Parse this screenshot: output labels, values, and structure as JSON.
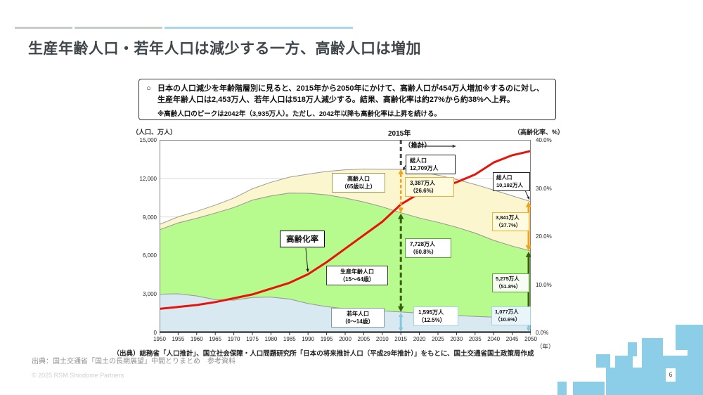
{
  "slide": {
    "title": "生産年齢人口・若年人口は減少する一方、高齢人口は増加",
    "lead_box": {
      "bullet": "○",
      "line1": "日本の人口減少を年齢階層別に見ると、2015年から2050年にかけて、高齢人口が454万人増加※するのに対し、",
      "line2": "生産年齢人口は2,453万人、若年人口は518万人減少する。結果、高齢化率は約27%から約38%へ上昇。",
      "note": "※高齢人口のピークは2042年（3,935万人）。ただし、2042年以降も高齢化率は上昇を続ける。"
    },
    "chart_source": "（出典）総務省「人口推計」、国立社会保障・人口問題研究所「日本の将来推計人口（平成29年推計）」をもとに、国土交通省国土政策局作成",
    "footer_source": "出典：国土交通省「国土の長期展望」中間とりまとめ　参考資料",
    "copyright": "© 2025 RSM Shiodome Partners",
    "page_number": "6"
  },
  "chart_data": {
    "type": "area",
    "stacked": true,
    "x": [
      1950,
      1955,
      1960,
      1965,
      1970,
      1975,
      1980,
      1985,
      1990,
      1995,
      2000,
      2005,
      2010,
      2015,
      2020,
      2025,
      2030,
      2035,
      2040,
      2045,
      2050
    ],
    "x_axis": {
      "unit_label": "（年）",
      "ticks": [
        1950,
        1955,
        1960,
        1965,
        1970,
        1975,
        1980,
        1985,
        1990,
        1995,
        2000,
        2005,
        2010,
        2015,
        2020,
        2025,
        2030,
        2035,
        2040,
        2045,
        2050
      ]
    },
    "left_axis": {
      "title": "（人口、万人）",
      "range": [
        0,
        15000
      ],
      "ticks": [
        "15,000",
        "12,000",
        "9,000",
        "6,000",
        "3,000",
        "0"
      ]
    },
    "right_axis": {
      "title": "（高齢化率、%）",
      "range": [
        0,
        40
      ],
      "ticks": [
        "40.0%",
        "30.0%",
        "20.0%",
        "10.0%",
        "0.0%"
      ]
    },
    "projection_start": 2015,
    "series": [
      {
        "name": "若年人口（0～14歳）",
        "type": "area",
        "axis": "left",
        "color": "#D9E9F1",
        "values": [
          2979,
          3012,
          2843,
          2553,
          2515,
          2722,
          2751,
          2603,
          2249,
          2001,
          1847,
          1752,
          1680,
          1595,
          1507,
          1407,
          1321,
          1246,
          1194,
          1138,
          1077
        ]
      },
      {
        "name": "生産年齢人口（15～64歳）",
        "type": "area",
        "axis": "left",
        "color": "#B7FA8D",
        "values": [
          5017,
          5517,
          6047,
          6744,
          7212,
          7581,
          7883,
          8251,
          8590,
          8716,
          8622,
          8409,
          8103,
          7728,
          7406,
          7170,
          6875,
          6494,
          5978,
          5584,
          5275
        ]
      },
      {
        "name": "高齢人口（65歳以上）",
        "type": "area",
        "axis": "left",
        "color": "#FBF6CD",
        "values": [
          416,
          479,
          540,
          624,
          739,
          887,
          1065,
          1247,
          1489,
          1826,
          2201,
          2567,
          2925,
          3387,
          3619,
          3677,
          3716,
          3782,
          3921,
          3919,
          3841
        ]
      },
      {
        "name": "高齢化率",
        "type": "line",
        "axis": "right",
        "color": "#E8130C",
        "values": [
          4.9,
          5.3,
          5.7,
          6.3,
          7.1,
          7.9,
          9.1,
          10.3,
          12.1,
          14.6,
          17.4,
          20.2,
          23.0,
          26.6,
          28.9,
          30.0,
          31.2,
          32.8,
          35.3,
          36.8,
          37.7
        ]
      }
    ],
    "annotations": {
      "year_2015_label": "2015年",
      "projection_label": "（推計）",
      "rate_label": "高齢化率",
      "series_label_elderly": {
        "l1": "高齢人口",
        "l2": "（65歳以上）"
      },
      "series_label_working": {
        "l1": "生産年齢人口",
        "l2": "（15～64歳）"
      },
      "series_label_young": {
        "l1": "若年人口",
        "l2": "（0～14歳）"
      },
      "total_2015": {
        "l1": "総人口",
        "l2": "12,709万人"
      },
      "total_2050": {
        "l1": "総人口",
        "l2": "10,192万人"
      },
      "elderly_2015": {
        "l1": "3,387万人",
        "l2": "（26.6%）"
      },
      "working_2015": {
        "l1": "7,728万人",
        "l2": "（60.8%）"
      },
      "young_2015": {
        "l1": "1,595万人",
        "l2": "（12.5%）"
      },
      "elderly_2050": {
        "l1": "3,841万人",
        "l2": "（37.7%）"
      },
      "working_2050": {
        "l1": "5,275万人",
        "l2": "（51.8%）"
      },
      "young_2050": {
        "l1": "1,077万人",
        "l2": "（10.6%）"
      }
    }
  },
  "decor": {
    "top_bar_colors": [
      "#C8CCC9",
      "#C2CFC4",
      "#A7D8EB"
    ],
    "mosaic_color": "#8CCEE8",
    "arrow_orange": "#F2A21A",
    "arrow_dark_green": "#3A5E0F",
    "arrow_light_blue": "#85C8DE"
  }
}
